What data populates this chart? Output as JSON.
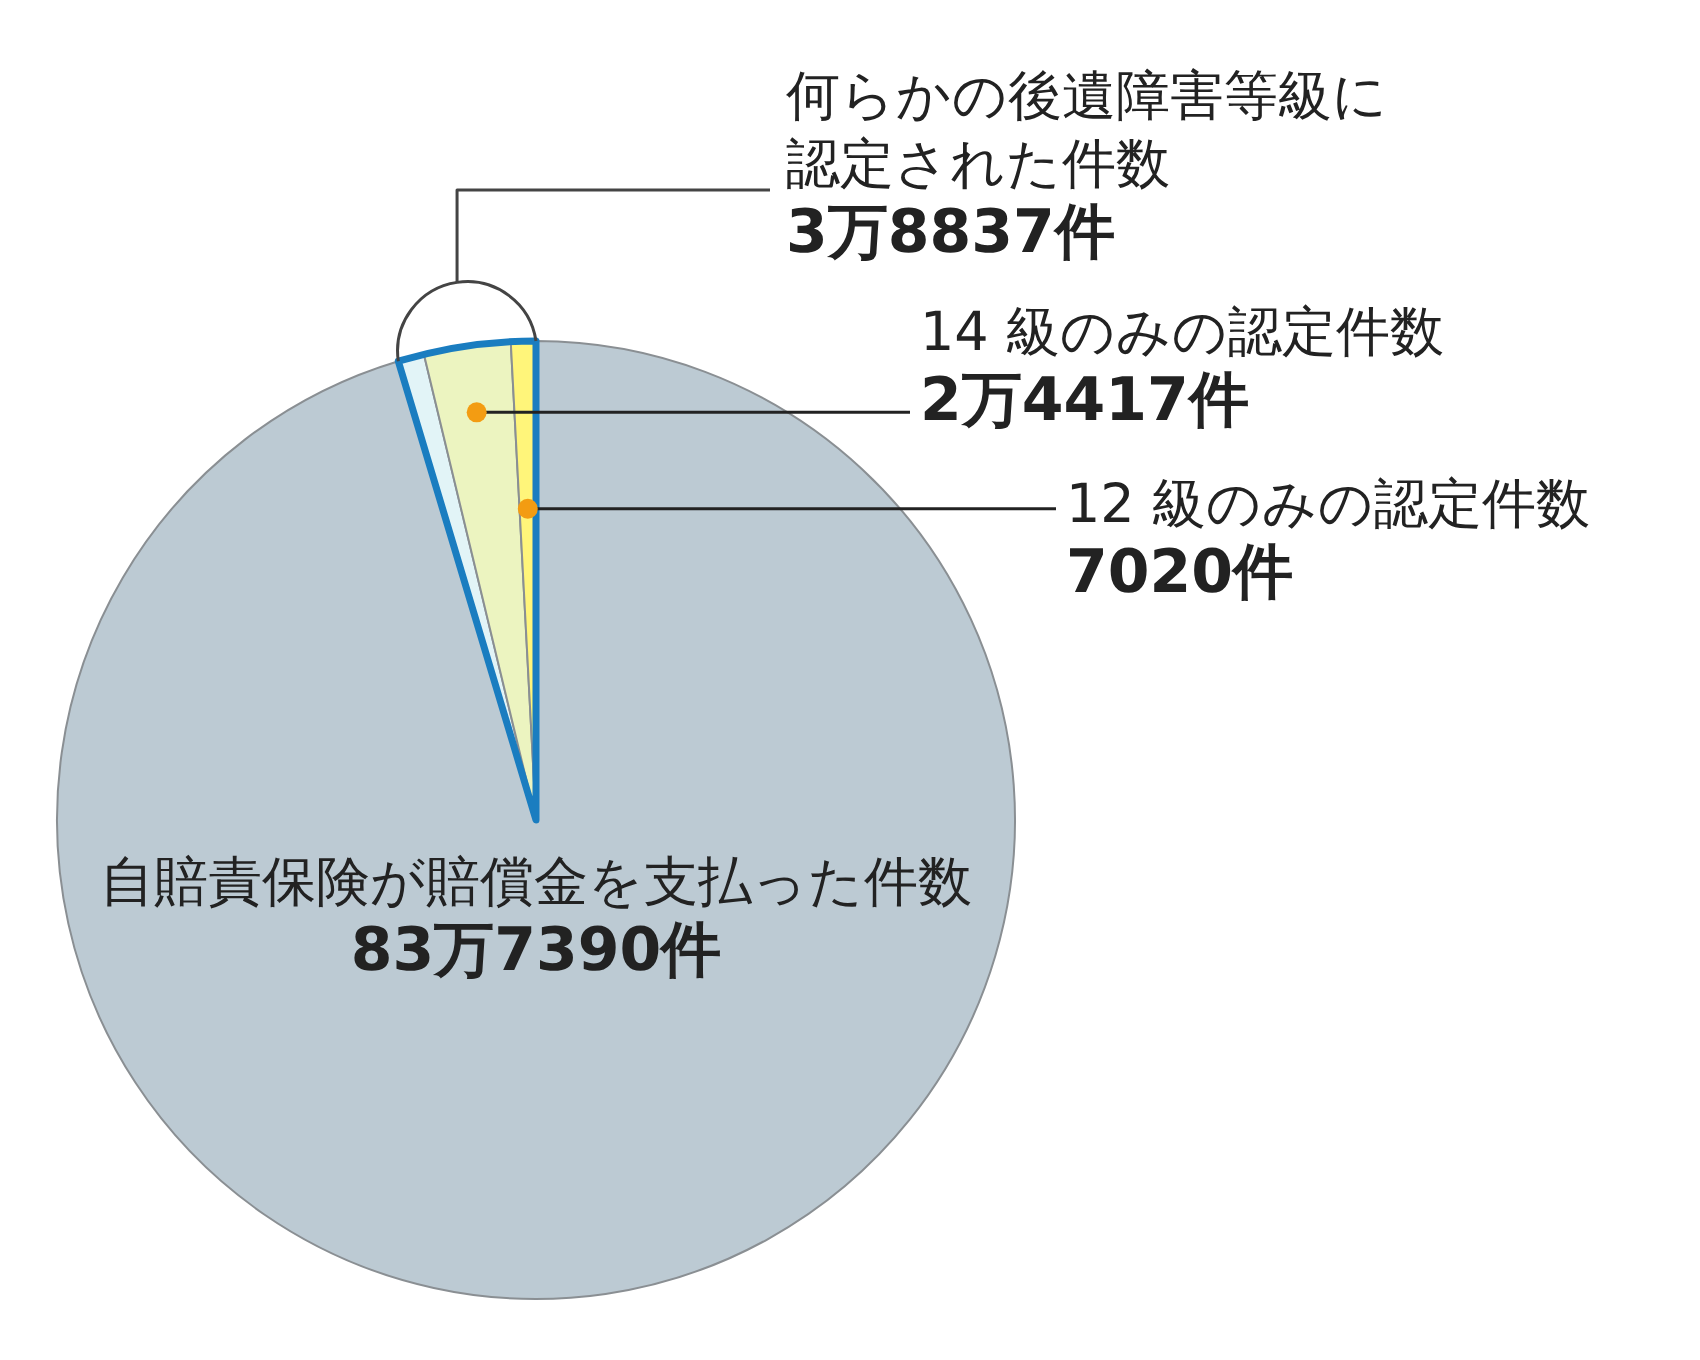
{
  "chart_data": {
    "type": "pie",
    "categories": [
      null,
      null,
      "14 級のみの認定件数",
      "12 級のみの認定件数"
    ],
    "values": [
      95.36,
      0.88,
      2.92,
      0.84
    ],
    "colors": [
      "#bccad3",
      "#e2f4f7",
      "#ecf4c0",
      "#fff57a"
    ],
    "annotations": [
      "何らかの後遺障害等級に認定された件数",
      "3万8837件",
      "自賠責保険が賠償金を支払った件数",
      "83万7390件",
      "2万4417件",
      "7020件"
    ],
    "legend": false
  }
}
